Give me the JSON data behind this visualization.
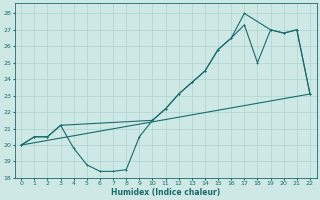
{
  "background_color": "#cde8e5",
  "grid_color": "#b0d4d0",
  "line_color": "#1a6b6b",
  "xlabel": "Humidex (Indice chaleur)",
  "xlim": [
    -0.5,
    22.5
  ],
  "ylim": [
    18,
    28.6
  ],
  "yticks": [
    18,
    19,
    20,
    21,
    22,
    23,
    24,
    25,
    26,
    27,
    28
  ],
  "xticks": [
    0,
    1,
    2,
    3,
    4,
    5,
    6,
    7,
    8,
    9,
    10,
    11,
    12,
    13,
    14,
    15,
    16,
    17,
    18,
    19,
    20,
    21,
    22
  ],
  "curve_upper_x": [
    0,
    1,
    2,
    3,
    10,
    11,
    12,
    13,
    14,
    15,
    16,
    17,
    19,
    20,
    21,
    22
  ],
  "curve_upper_y": [
    20.0,
    20.5,
    20.5,
    21.2,
    21.5,
    22.2,
    23.1,
    23.8,
    24.5,
    25.8,
    26.5,
    28.0,
    27.0,
    26.8,
    27.0,
    23.1
  ],
  "curve_lower_x": [
    0,
    1,
    2,
    3,
    4,
    5,
    6,
    7,
    8,
    9,
    10,
    11,
    12,
    13,
    14,
    15,
    16,
    17,
    18,
    19,
    20,
    21,
    22
  ],
  "curve_lower_y": [
    20.0,
    20.5,
    20.5,
    21.2,
    19.8,
    18.8,
    18.4,
    18.4,
    18.5,
    20.5,
    21.5,
    22.2,
    23.1,
    23.8,
    24.5,
    25.8,
    26.5,
    27.3,
    25.0,
    27.0,
    26.8,
    27.0,
    23.1
  ],
  "trend_x": [
    0,
    22
  ],
  "trend_y": [
    20.0,
    23.1
  ]
}
